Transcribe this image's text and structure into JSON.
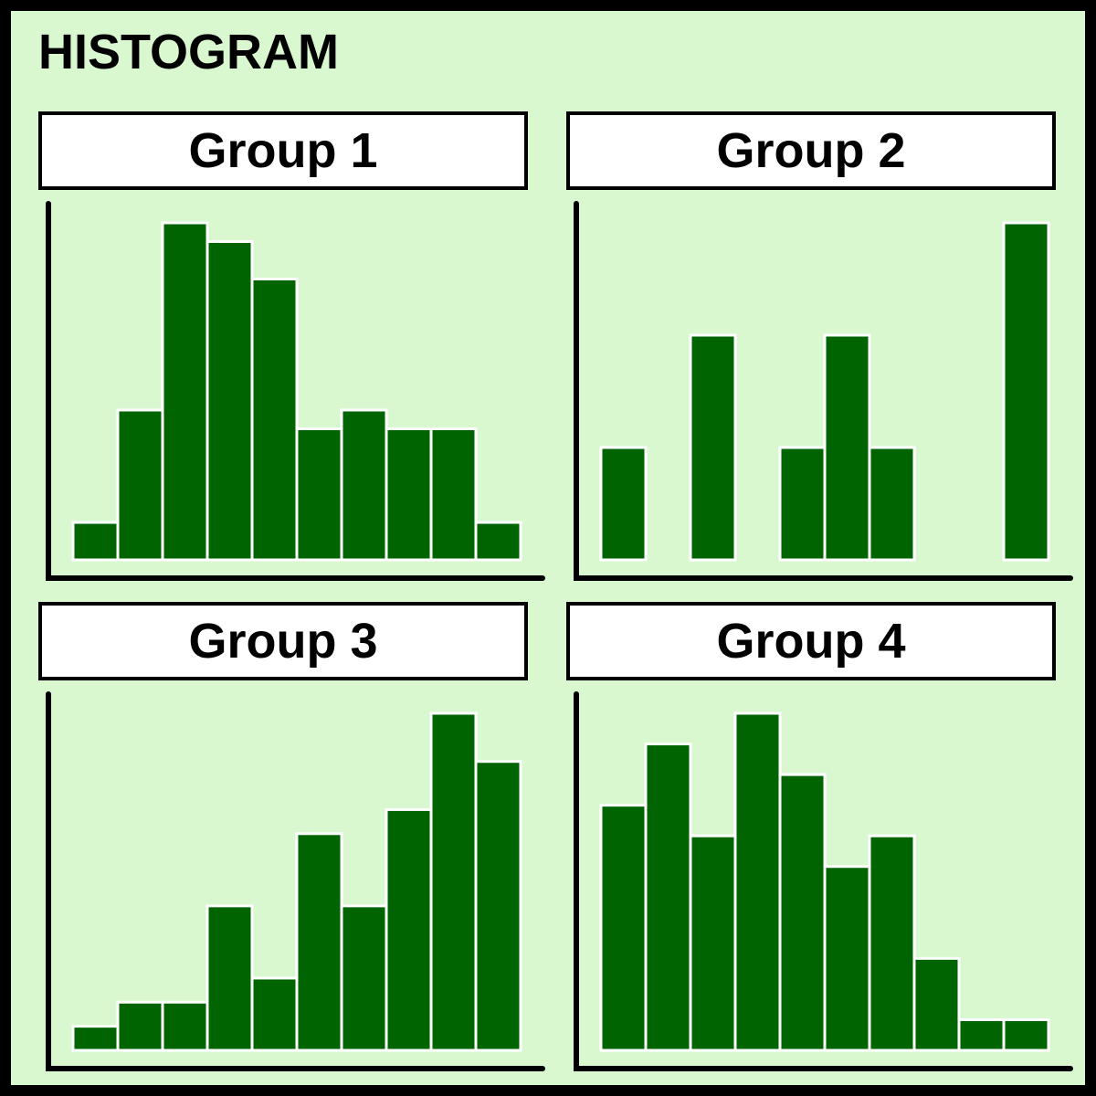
{
  "title": "HISTOGRAM",
  "colors": {
    "background": "#d9f8d0",
    "bar_fill": "#006400",
    "bar_stroke": "#ffffff",
    "header_fill": "#ffffff",
    "border": "#000000"
  },
  "chart_data": [
    {
      "type": "bar",
      "title": "Group 1",
      "bins": 10,
      "values": [
        2,
        8,
        18,
        17,
        15,
        7,
        8,
        7,
        7,
        2
      ],
      "ylim": [
        0,
        18
      ],
      "grid": false
    },
    {
      "type": "bar",
      "title": "Group 2",
      "bins": 10,
      "values": [
        1,
        0,
        2,
        0,
        1,
        2,
        1,
        0,
        0,
        3
      ],
      "ylim": [
        0,
        3
      ],
      "grid": false
    },
    {
      "type": "bar",
      "title": "Group 3",
      "bins": 10,
      "values": [
        1,
        2,
        2,
        6,
        3,
        9,
        6,
        10,
        14,
        12
      ],
      "ylim": [
        0,
        14
      ],
      "grid": false
    },
    {
      "type": "bar",
      "title": "Group 4",
      "bins": 10,
      "values": [
        8,
        10,
        7,
        11,
        9,
        6,
        7,
        3,
        1,
        1
      ],
      "ylim": [
        0,
        11
      ],
      "grid": false
    }
  ]
}
